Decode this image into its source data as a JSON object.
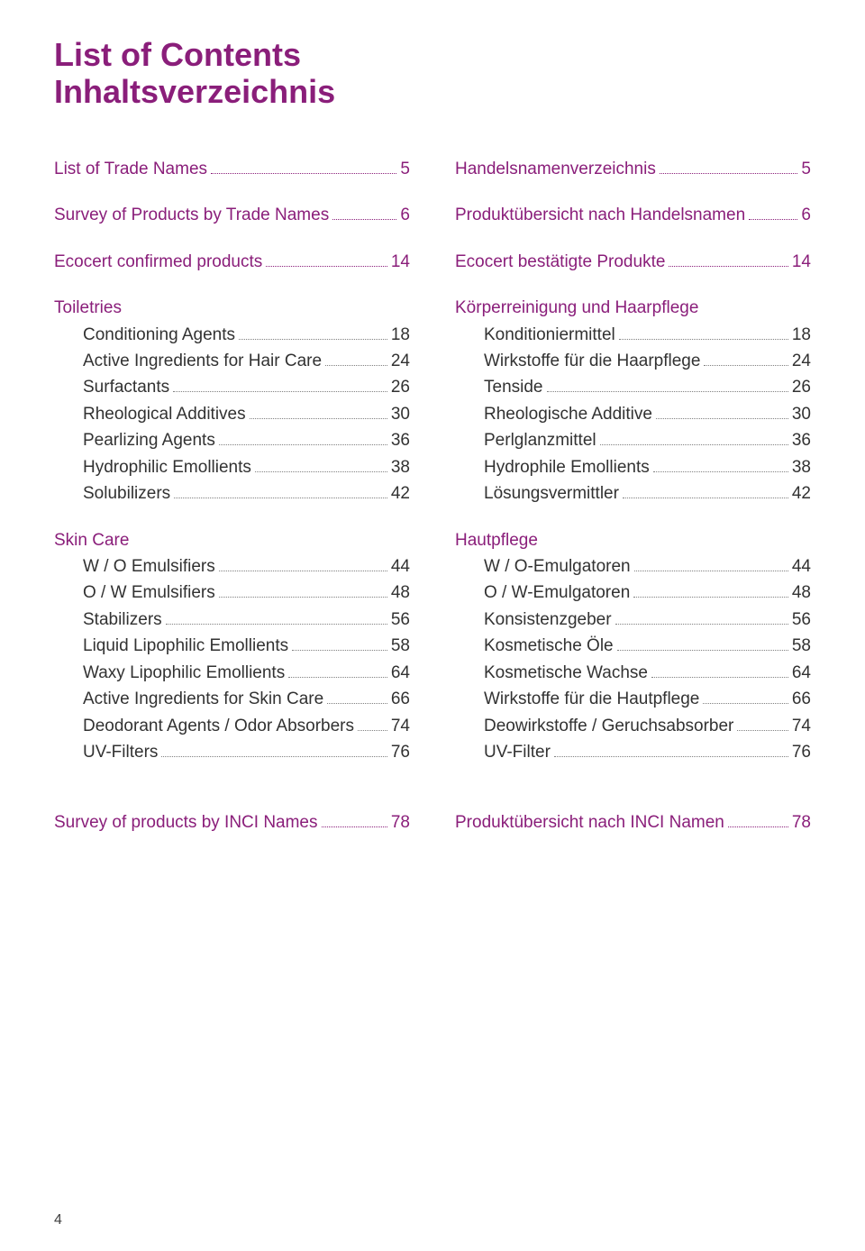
{
  "colors": {
    "accent": "#8a1e7a",
    "body": "#323232"
  },
  "title_line1": "List of Contents",
  "title_line2": "Inhaltsverzeichnis",
  "page_number": "4",
  "left": {
    "s1": {
      "label": "List of Trade Names",
      "page": "5"
    },
    "s2": {
      "label": "Survey of Products by Trade Names",
      "page": "6"
    },
    "s3": {
      "label": "Ecocert confirmed products",
      "page": "14"
    },
    "s4": {
      "heading": "Toiletries",
      "items": [
        {
          "label": "Conditioning Agents",
          "page": "18"
        },
        {
          "label": "Active Ingredients for  Hair Care",
          "page": "24"
        },
        {
          "label": "Surfactants",
          "page": "26"
        },
        {
          "label": "Rheological Additives",
          "page": "30"
        },
        {
          "label": "Pearlizing Agents",
          "page": "36"
        },
        {
          "label": "Hydrophilic Emollients",
          "page": "38"
        },
        {
          "label": "Solubilizers",
          "page": "42"
        }
      ]
    },
    "s5": {
      "heading": "Skin Care",
      "items": [
        {
          "label": "W / O Emulsifiers",
          "page": "44"
        },
        {
          "label": "O / W Emulsifiers",
          "page": "48"
        },
        {
          "label": "Stabilizers",
          "page": "56"
        },
        {
          "label": "Liquid Lipophilic Emollients",
          "page": "58"
        },
        {
          "label": "Waxy Lipophilic Emollients",
          "page": "64"
        },
        {
          "label": "Active Ingredients for  Skin Care",
          "page": "66"
        },
        {
          "label": "Deodorant Agents / Odor Absorbers",
          "page": "74"
        },
        {
          "label": "UV-Filters",
          "page": "76"
        }
      ]
    },
    "s6": {
      "label": "Survey of products by INCI Names",
      "page": "78"
    }
  },
  "right": {
    "s1": {
      "label": "Handelsnamenverzeichnis",
      "page": "5"
    },
    "s2": {
      "label": "Produktübersicht nach Handelsnamen",
      "page": "6"
    },
    "s3": {
      "label": "Ecocert bestätigte Produkte",
      "page": "14"
    },
    "s4": {
      "heading": "Körperreinigung und Haarpflege",
      "items": [
        {
          "label": "Konditioniermittel",
          "page": "18"
        },
        {
          "label": "Wirkstoffe für die Haarpflege",
          "page": "24"
        },
        {
          "label": "Tenside",
          "page": "26"
        },
        {
          "label": "Rheologische Additive",
          "page": "30"
        },
        {
          "label": "Perlglanzmittel",
          "page": "36"
        },
        {
          "label": "Hydrophile Emollients",
          "page": "38"
        },
        {
          "label": "Lösungsvermittler",
          "page": "42"
        }
      ]
    },
    "s5": {
      "heading": "Hautpflege",
      "items": [
        {
          "label": "W / O-Emulgatoren",
          "page": "44"
        },
        {
          "label": "O / W-Emulgatoren",
          "page": "48"
        },
        {
          "label": "Konsistenzgeber",
          "page": "56"
        },
        {
          "label": "Kosmetische Öle",
          "page": "58"
        },
        {
          "label": "Kosmetische Wachse",
          "page": "64"
        },
        {
          "label": "Wirkstoffe für die Hautpflege",
          "page": "66"
        },
        {
          "label": "Deowirkstoffe / Geruchsabsorber",
          "page": "74"
        },
        {
          "label": "UV-Filter",
          "page": "76"
        }
      ]
    },
    "s6": {
      "label": "Produktübersicht nach INCI Namen",
      "page": "78"
    }
  }
}
